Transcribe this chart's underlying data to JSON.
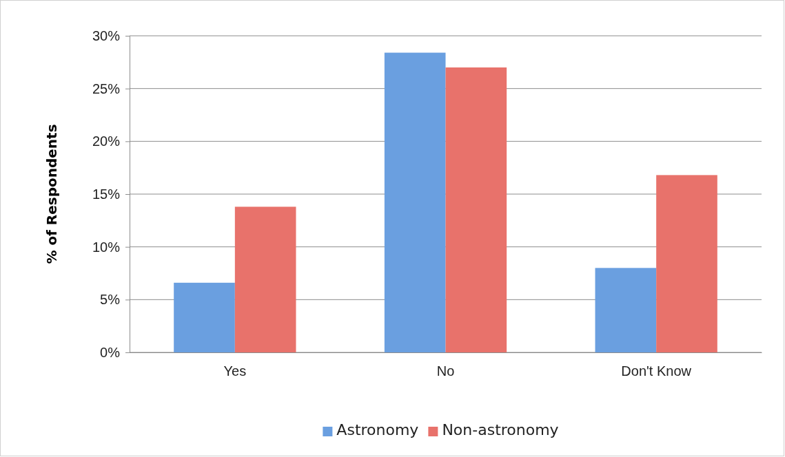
{
  "chart_data": {
    "type": "bar",
    "ylabel": "% of Respondents",
    "categories": [
      "Yes",
      "No",
      "Don't Know"
    ],
    "series": [
      {
        "name": "Astronomy",
        "color": "#6a9fe0",
        "values": [
          6.6,
          28.4,
          8.0
        ]
      },
      {
        "name": "Non-astronomy",
        "color": "#e8726b",
        "values": [
          13.8,
          27.0,
          16.8
        ]
      }
    ],
    "ylim": [
      0,
      30
    ],
    "yticks": [
      {
        "value": 0,
        "label": "0%"
      },
      {
        "value": 5,
        "label": "5%"
      },
      {
        "value": 10,
        "label": "10%"
      },
      {
        "value": 15,
        "label": "15%"
      },
      {
        "value": 20,
        "label": "20%"
      },
      {
        "value": 25,
        "label": "25%"
      },
      {
        "value": 30,
        "label": "30%"
      }
    ],
    "grid": "y",
    "legend": "bottom"
  }
}
